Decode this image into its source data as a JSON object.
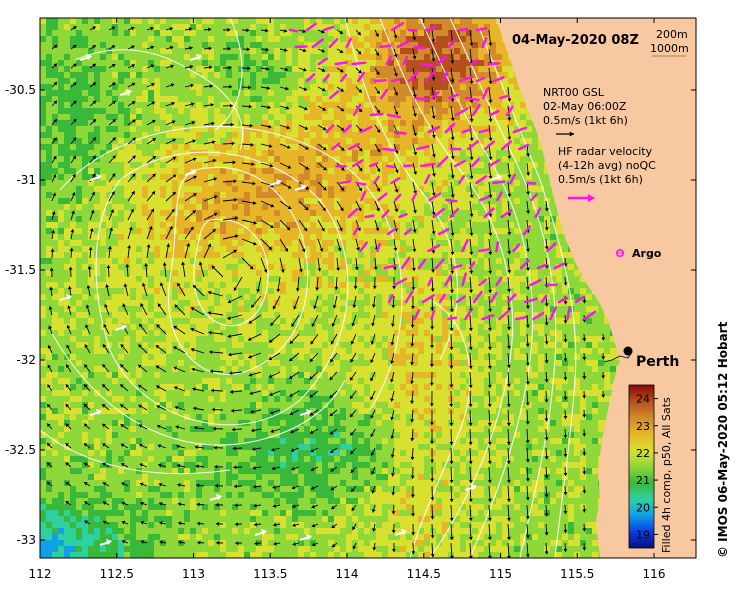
{
  "title": "04-May-2020 08Z",
  "scale_bar": {
    "label_top": "200m",
    "label_bottom": "1000m"
  },
  "legend": {
    "gsl_title": "NRT00 GSL",
    "gsl_time": "02-May 06:00Z",
    "gsl_scale": "0.5m/s (1kt 6h)",
    "radar_line1": "HF radar velocity",
    "radar_line2": "(4-12h avg) noQC",
    "radar_scale": "0.5m/s (1kt 6h)",
    "argo_label": "Argo"
  },
  "city": {
    "name": "Perth",
    "lon": 115.86,
    "lat": -31.95
  },
  "colorbar": {
    "ticks": [
      24,
      23,
      22,
      21,
      20,
      19
    ],
    "label": "Filled 4h comp, p50, All Sats",
    "range": [
      18.5,
      24.5
    ],
    "colors": [
      "#05107f",
      "#0a3ce0",
      "#0fa0e6",
      "#2fd0a0",
      "#3ab83a",
      "#8fd83a",
      "#d8e030",
      "#e6b628",
      "#d28a2a",
      "#b4501e",
      "#8a0a08"
    ]
  },
  "axes": {
    "x_ticks": [
      "112",
      "112.5",
      "113",
      "113.5",
      "114",
      "114.5",
      "115",
      "115.5",
      "116"
    ],
    "y_ticks": [
      "-30.5",
      "-31",
      "-31.5",
      "-32",
      "-32.5",
      "-33"
    ],
    "x_range": [
      112,
      116.3
    ],
    "y_range": [
      -33.1,
      -30.1
    ]
  },
  "credit": "© IMOS 06-May-2020 05:12 Hobart",
  "colors": {
    "land": "#f8c8a0",
    "radar_arrow": "#ff10f0",
    "current_arrow": "#000000",
    "contour": "#ffffff"
  },
  "icons": {
    "argo": "argo-float-icon",
    "city": "city-marker-icon"
  }
}
